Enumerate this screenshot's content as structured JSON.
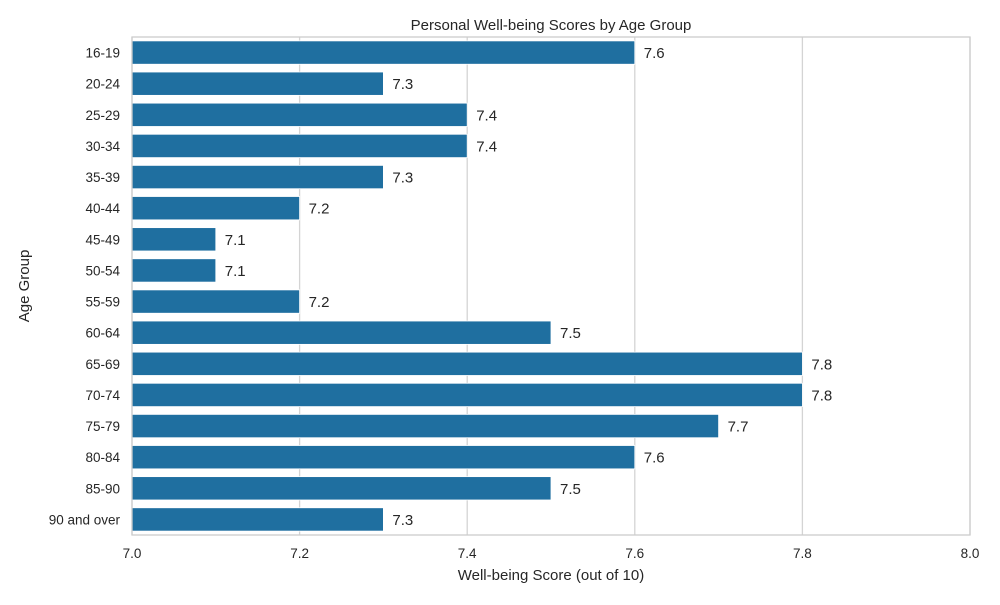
{
  "chart_data": {
    "type": "bar",
    "orientation": "horizontal",
    "title": "Personal Well-being Scores by Age Group",
    "xlabel": "Well-being Score (out of 10)",
    "ylabel": "Age Group",
    "xlim": [
      7.0,
      8.0
    ],
    "xticks": [
      "7.0",
      "7.2",
      "7.4",
      "7.6",
      "7.8",
      "8.0"
    ],
    "categories": [
      "16-19",
      "20-24",
      "25-29",
      "30-34",
      "35-39",
      "40-44",
      "45-49",
      "50-54",
      "55-59",
      "60-64",
      "65-69",
      "70-74",
      "75-79",
      "80-84",
      "85-90",
      "90 and over"
    ],
    "values": [
      7.6,
      7.3,
      7.4,
      7.4,
      7.3,
      7.2,
      7.1,
      7.1,
      7.2,
      7.5,
      7.8,
      7.8,
      7.7,
      7.6,
      7.5,
      7.3
    ],
    "data_labels": [
      "7.6",
      "7.3",
      "7.4",
      "7.4",
      "7.3",
      "7.2",
      "7.1",
      "7.1",
      "7.2",
      "7.5",
      "7.8",
      "7.8",
      "7.7",
      "7.6",
      "7.5",
      "7.3"
    ],
    "grid": "vertical",
    "bar_color": "#1f6fa0",
    "grid_color": "#d4d4d4",
    "frame_color": "#cccccc"
  }
}
